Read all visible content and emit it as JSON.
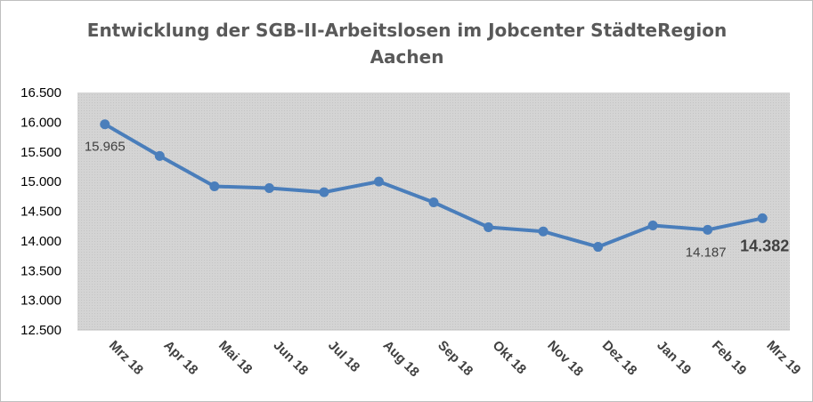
{
  "chart_data": {
    "type": "line",
    "title_lines": [
      "Entwicklung der SGB-II-Arbeitslosen im Jobcenter StädteRegion",
      "Aachen"
    ],
    "xlabel": "",
    "ylabel": "",
    "categories": [
      "Mrz 18",
      "Apr 18",
      "Mai 18",
      "Jun 18",
      "Jul 18",
      "Aug 18",
      "Sep 18",
      "Okt 18",
      "Nov 18",
      "Dez 18",
      "Jan 19",
      "Feb 19",
      "Mrz 19"
    ],
    "series": [
      {
        "values": [
          15965,
          15430,
          14920,
          14890,
          14820,
          15000,
          14650,
          14230,
          14160,
          13900,
          14260,
          14187,
          14382
        ]
      }
    ],
    "ylim": [
      12500,
      16500
    ],
    "yticks": [
      "12.500",
      "13.000",
      "13.500",
      "14.000",
      "14.500",
      "15.000",
      "15.500",
      "16.000",
      "16.500"
    ],
    "data_labels": [
      {
        "index": 0,
        "text": "15.965",
        "style": "normal"
      },
      {
        "index": 11,
        "text": "14.187",
        "style": "normal"
      },
      {
        "index": 12,
        "text": "14.382",
        "style": "bold"
      }
    ],
    "grid": false,
    "legend": "none",
    "colors": {
      "line": "#4a7ebb",
      "plot_background": "#d9d9d9",
      "title": "#595959"
    }
  }
}
